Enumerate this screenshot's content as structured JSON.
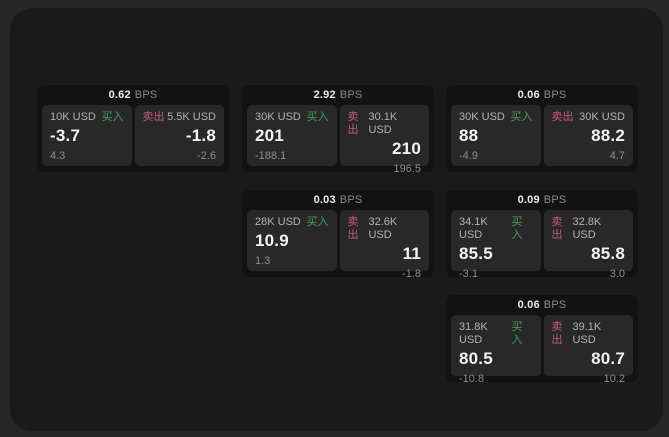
{
  "theme": {
    "outer_background": "#262626",
    "board_background": "#1a1a1a",
    "card_background": "#121212",
    "panel_background": "#282828",
    "buy_color": "#43a05c",
    "sell_color": "#c75a72",
    "value_color": "#f2f2f2",
    "label_color": "#b3b3b3",
    "muted_color": "#8d8d8d"
  },
  "labels": {
    "bps_unit": "BPS",
    "buy": "买入",
    "sell": "卖出"
  },
  "cards": [
    {
      "bps": "0.62",
      "col": 1,
      "row": 1,
      "buy": {
        "size": "10K USD",
        "price": "-3.7",
        "delta": "4.3"
      },
      "sell": {
        "size": "5.5K USD",
        "price": "-1.8",
        "delta": "-2.6"
      }
    },
    {
      "bps": "2.92",
      "col": 2,
      "row": 1,
      "buy": {
        "size": "30K USD",
        "price": "201",
        "delta": "-188.1"
      },
      "sell": {
        "size": "30.1K USD",
        "price": "210",
        "delta": "196.5"
      }
    },
    {
      "bps": "0.06",
      "col": 3,
      "row": 1,
      "buy": {
        "size": "30K USD",
        "price": "88",
        "delta": "-4.9"
      },
      "sell": {
        "size": "30K USD",
        "price": "88.2",
        "delta": "4.7"
      }
    },
    {
      "bps": "0.03",
      "col": 2,
      "row": 2,
      "buy": {
        "size": "28K USD",
        "price": "10.9",
        "delta": "1.3"
      },
      "sell": {
        "size": "32.6K USD",
        "price": "11",
        "delta": "-1.8"
      }
    },
    {
      "bps": "0.09",
      "col": 3,
      "row": 2,
      "buy": {
        "size": "34.1K USD",
        "price": "85.5",
        "delta": "-3.1"
      },
      "sell": {
        "size": "32.8K USD",
        "price": "85.8",
        "delta": "3.0"
      }
    },
    {
      "bps": "0.06",
      "col": 3,
      "row": 3,
      "buy": {
        "size": "31.8K USD",
        "price": "80.5",
        "delta": "-10.8"
      },
      "sell": {
        "size": "39.1K USD",
        "price": "80.7",
        "delta": "10.2"
      }
    }
  ]
}
